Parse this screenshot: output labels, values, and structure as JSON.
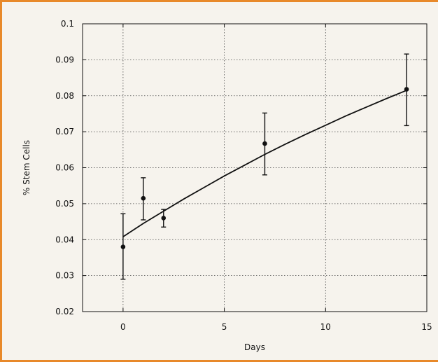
{
  "chart_data": {
    "type": "scatter",
    "xlabel": "Days",
    "ylabel": "% Stem Cells",
    "xlim": [
      -2,
      15
    ],
    "ylim": [
      0.02,
      0.1
    ],
    "x_ticks": [
      0,
      5,
      10,
      15
    ],
    "y_ticks": [
      0.02,
      0.03,
      0.04,
      0.05,
      0.06,
      0.07,
      0.08,
      0.09,
      0.1
    ],
    "x_tick_labels": [
      "0",
      "5",
      "10",
      "15"
    ],
    "y_tick_labels": [
      "0.02",
      "0.03",
      "0.04",
      "0.05",
      "0.06",
      "0.07",
      "0.08",
      "0.09",
      "0.1"
    ],
    "grid": true,
    "series": [
      {
        "type": "scatter_errorbar",
        "x": [
          0,
          1,
          2,
          7,
          14
        ],
        "y": [
          0.038,
          0.0515,
          0.046,
          0.0667,
          0.0818
        ],
        "yerr_low": [
          0.029,
          0.0455,
          0.0435,
          0.058,
          0.0717
        ],
        "yerr_high": [
          0.0472,
          0.0572,
          0.0484,
          0.0752,
          0.0916
        ]
      },
      {
        "type": "line",
        "x": [
          0,
          1,
          2,
          3,
          4,
          5,
          6,
          7,
          8,
          9,
          10,
          11,
          12,
          13,
          14
        ],
        "y": [
          0.0408,
          0.0445,
          0.0479,
          0.0513,
          0.0545,
          0.0577,
          0.0607,
          0.0637,
          0.0665,
          0.0692,
          0.0718,
          0.0744,
          0.0768,
          0.0792,
          0.0815
        ]
      }
    ]
  },
  "colors": {
    "frame": "#e8892a",
    "background": "#f6f3ed",
    "ink": "#111111",
    "grid": "#444444"
  }
}
